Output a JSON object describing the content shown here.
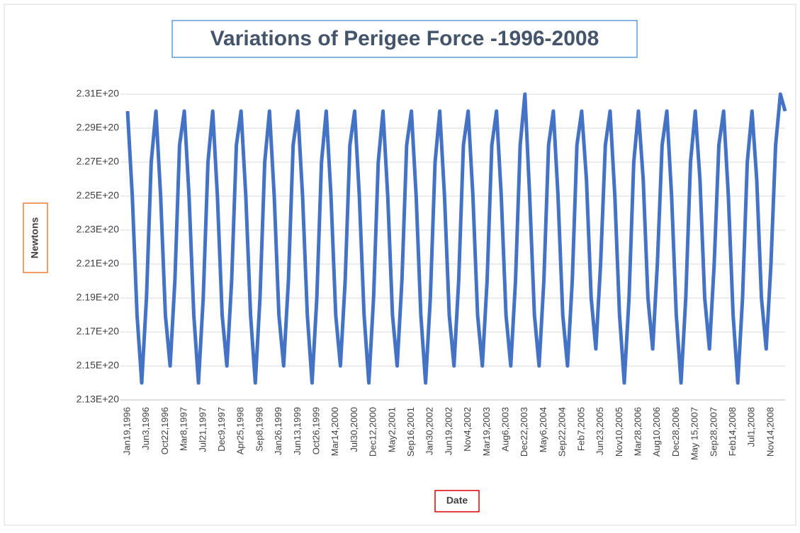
{
  "chart_data": {
    "type": "line",
    "title": "Variations of Perigee Force -1996-2008",
    "x_label": "Date",
    "y_label": "Newtons",
    "categories": [
      "Jan19,1996",
      null,
      null,
      null,
      "Jun3,1996",
      null,
      null,
      null,
      "Oct22,1996",
      null,
      null,
      null,
      "Mar8,1997",
      null,
      null,
      null,
      "Jul21,1997",
      null,
      null,
      null,
      "Dec9,1997",
      null,
      null,
      null,
      "Apr25,1998",
      null,
      null,
      null,
      "Sep8,1998",
      null,
      null,
      null,
      "Jan26,1999",
      null,
      null,
      null,
      "Jun13,1999",
      null,
      null,
      null,
      "Oct26,1999",
      null,
      null,
      null,
      "Mar14,2000",
      null,
      null,
      null,
      "Jul30,2000",
      null,
      null,
      null,
      "Dec12,2000",
      null,
      null,
      null,
      "May2,2001",
      null,
      null,
      null,
      "Sep16,2001",
      null,
      null,
      null,
      "Jan30,2002",
      null,
      null,
      null,
      "Jun19,2002",
      null,
      null,
      null,
      "Nov4,2002",
      null,
      null,
      null,
      "Mar19,2003",
      null,
      null,
      null,
      "Aug6,2003",
      null,
      null,
      null,
      "Dec22,2003",
      null,
      null,
      null,
      "May6,2004",
      null,
      null,
      null,
      "Sep22,2004",
      null,
      null,
      null,
      "Feb7,2005",
      null,
      null,
      null,
      "Jun23,2005",
      null,
      null,
      null,
      "Nov10,2005",
      null,
      null,
      null,
      "Mar28,2006",
      null,
      null,
      null,
      "Aug10,2006",
      null,
      null,
      null,
      "Dec28,2006",
      null,
      null,
      null,
      "May 15,2007",
      null,
      null,
      null,
      "Sep28,2007",
      null,
      null,
      null,
      "Feb14,2008",
      null,
      null,
      null,
      "Jul1,2008",
      null,
      null,
      null,
      "Nov14,2008",
      null,
      null,
      null
    ],
    "series": [
      {
        "name": "Newtons",
        "color": "#4472c4",
        "values": [
          2.3e+20,
          2.25e+20,
          2.18e+20,
          2.14e+20,
          2.19e+20,
          2.27e+20,
          2.3e+20,
          2.25e+20,
          2.18e+20,
          2.15e+20,
          2.2e+20,
          2.28e+20,
          2.3e+20,
          2.25e+20,
          2.18e+20,
          2.14e+20,
          2.19e+20,
          2.27e+20,
          2.3e+20,
          2.25e+20,
          2.18e+20,
          2.15e+20,
          2.2e+20,
          2.28e+20,
          2.3e+20,
          2.25e+20,
          2.18e+20,
          2.14e+20,
          2.19e+20,
          2.27e+20,
          2.3e+20,
          2.25e+20,
          2.18e+20,
          2.15e+20,
          2.2e+20,
          2.28e+20,
          2.3e+20,
          2.25e+20,
          2.18e+20,
          2.14e+20,
          2.19e+20,
          2.27e+20,
          2.3e+20,
          2.25e+20,
          2.18e+20,
          2.15e+20,
          2.2e+20,
          2.28e+20,
          2.3e+20,
          2.25e+20,
          2.18e+20,
          2.14e+20,
          2.19e+20,
          2.27e+20,
          2.3e+20,
          2.25e+20,
          2.18e+20,
          2.15e+20,
          2.2e+20,
          2.28e+20,
          2.3e+20,
          2.25e+20,
          2.18e+20,
          2.14e+20,
          2.19e+20,
          2.27e+20,
          2.3e+20,
          2.25e+20,
          2.18e+20,
          2.15e+20,
          2.2e+20,
          2.28e+20,
          2.3e+20,
          2.25e+20,
          2.18e+20,
          2.15e+20,
          2.2e+20,
          2.28e+20,
          2.3e+20,
          2.25e+20,
          2.18e+20,
          2.15e+20,
          2.2e+20,
          2.28e+20,
          2.31e+20,
          2.25e+20,
          2.18e+20,
          2.15e+20,
          2.2e+20,
          2.28e+20,
          2.3e+20,
          2.25e+20,
          2.18e+20,
          2.15e+20,
          2.2e+20,
          2.28e+20,
          2.3e+20,
          2.26e+20,
          2.19e+20,
          2.16e+20,
          2.21e+20,
          2.28e+20,
          2.3e+20,
          2.25e+20,
          2.18e+20,
          2.14e+20,
          2.19e+20,
          2.27e+20,
          2.3e+20,
          2.26e+20,
          2.19e+20,
          2.16e+20,
          2.21e+20,
          2.28e+20,
          2.3e+20,
          2.25e+20,
          2.18e+20,
          2.14e+20,
          2.19e+20,
          2.27e+20,
          2.3e+20,
          2.26e+20,
          2.19e+20,
          2.16e+20,
          2.21e+20,
          2.28e+20,
          2.3e+20,
          2.25e+20,
          2.18e+20,
          2.14e+20,
          2.19e+20,
          2.27e+20,
          2.3e+20,
          2.26e+20,
          2.19e+20,
          2.16e+20,
          2.21e+20,
          2.28e+20,
          2.31e+20,
          2.3e+20
        ]
      }
    ],
    "ylim": [
      2.13e+20,
      2.31e+20
    ],
    "yticks": [
      {
        "value": 2.13e+20,
        "label": "2.13E+20"
      },
      {
        "value": 2.15e+20,
        "label": "2.15E+20"
      },
      {
        "value": 2.17e+20,
        "label": "2.17E+20"
      },
      {
        "value": 2.19e+20,
        "label": "2.19E+20"
      },
      {
        "value": 2.21e+20,
        "label": "2.21E+20"
      },
      {
        "value": 2.23e+20,
        "label": "2.23E+20"
      },
      {
        "value": 2.25e+20,
        "label": "2.25E+20"
      },
      {
        "value": 2.27e+20,
        "label": "2.27E+20"
      },
      {
        "value": 2.29e+20,
        "label": "2.29E+20"
      },
      {
        "value": 2.31e+20,
        "label": "2.31E+20"
      }
    ],
    "grid": true
  }
}
